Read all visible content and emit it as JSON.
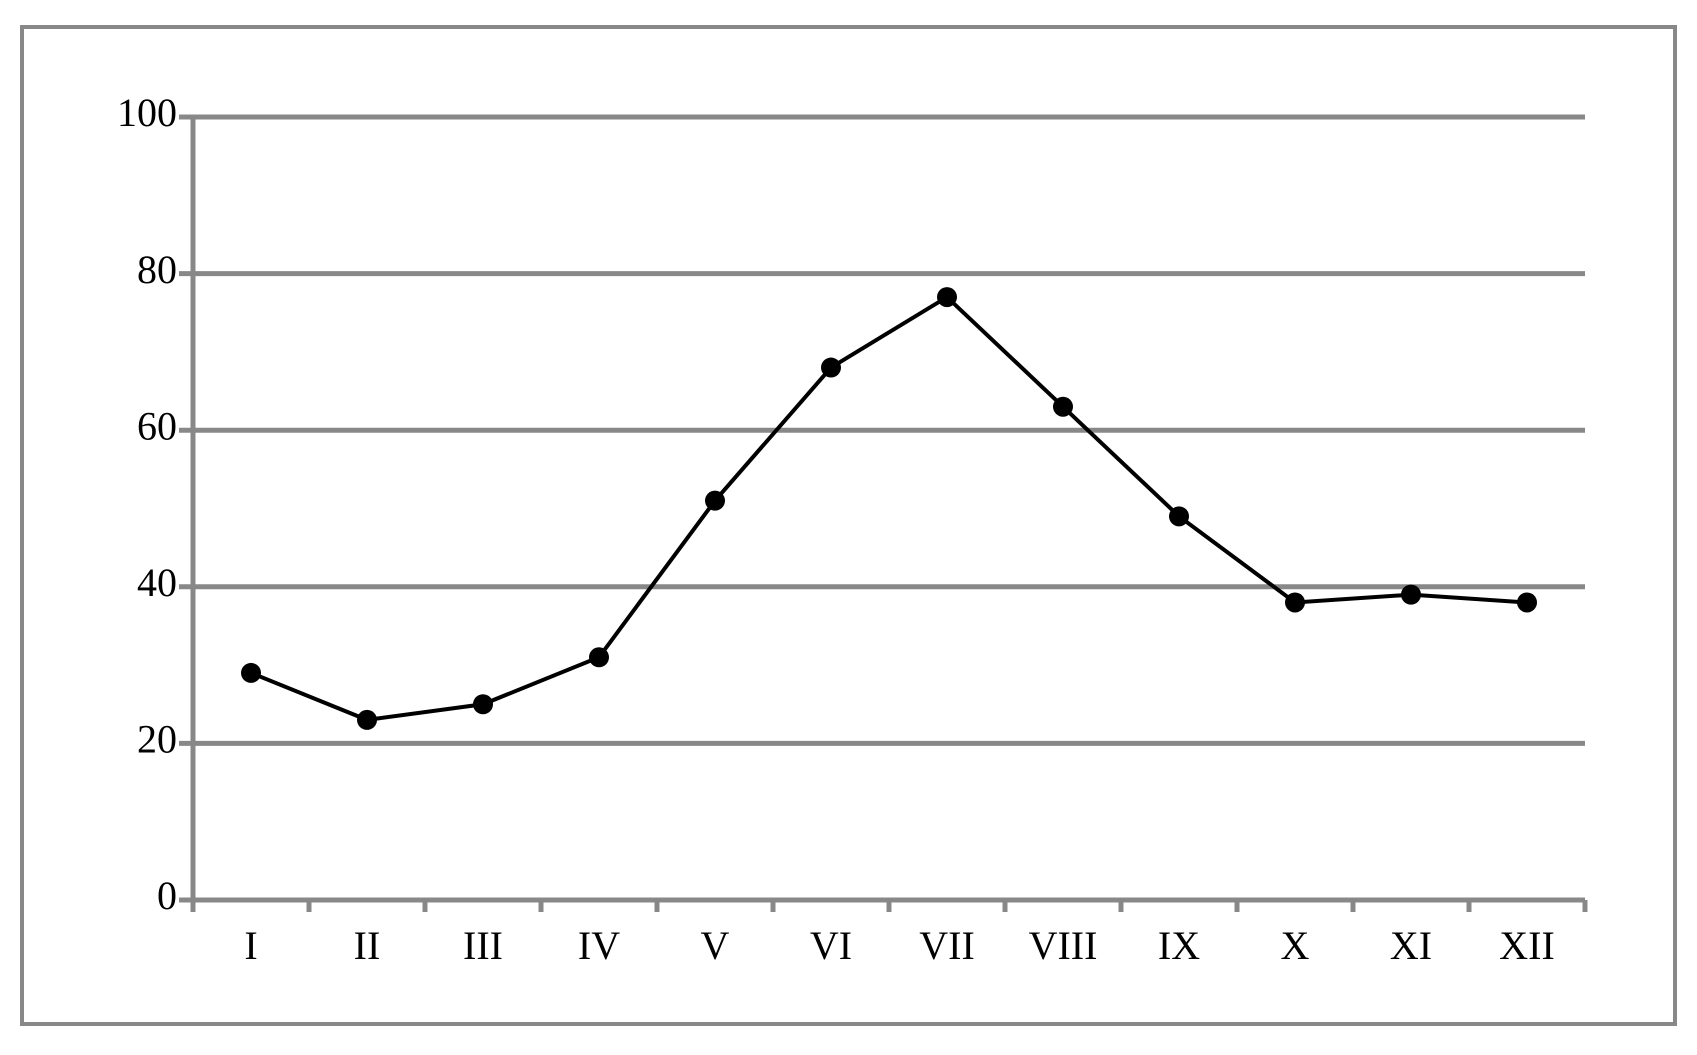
{
  "chart_data": {
    "type": "line",
    "categories": [
      "I",
      "II",
      "III",
      "IV",
      "V",
      "VI",
      "VII",
      "VIII",
      "IX",
      "X",
      "XI",
      "XII"
    ],
    "values": [
      29,
      23,
      25,
      31,
      51,
      68,
      77,
      63,
      49,
      38,
      39,
      38
    ],
    "color": "#000000",
    "ylim": [
      0,
      100
    ],
    "yticks": [
      0,
      20,
      40,
      60,
      80,
      100
    ],
    "grid": true
  }
}
